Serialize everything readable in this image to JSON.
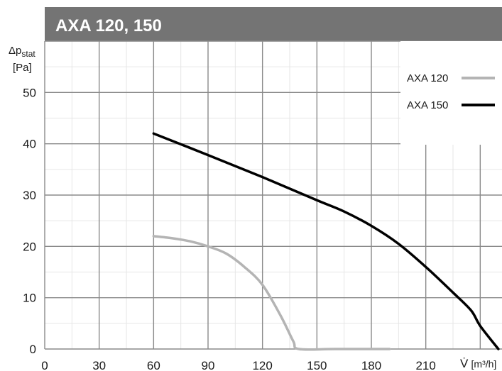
{
  "chart_data": {
    "type": "line",
    "title": "AXA 120, 150",
    "ylabel": "Δp",
    "ylabel_sub": "stat",
    "ylabel_unit": "[Pa]",
    "xlabel": "V̇",
    "xlabel_unit": "[m³/h]",
    "xlim": [
      0,
      252
    ],
    "ylim": [
      0,
      60
    ],
    "x_ticks": [
      0,
      30,
      60,
      90,
      120,
      150,
      180,
      210
    ],
    "y_ticks": [
      0,
      10,
      20,
      30,
      40,
      50
    ],
    "grid": true,
    "legend_position": "top-right",
    "series": [
      {
        "name": "AXA 120",
        "color": "#b4b4b4",
        "x": [
          60,
          70,
          80,
          90,
          100,
          110,
          120,
          130,
          137,
          140,
          160,
          190
        ],
        "y": [
          22,
          21.6,
          21,
          20,
          18.6,
          16,
          12.5,
          6.5,
          1.5,
          0,
          0,
          0
        ]
      },
      {
        "name": "AXA 150",
        "color": "#000000",
        "x": [
          60,
          90,
          120,
          150,
          165,
          180,
          195,
          210,
          225,
          235,
          240,
          250
        ],
        "y": [
          42,
          37.8,
          33.5,
          29,
          26.8,
          24,
          20.5,
          16,
          11,
          7.5,
          4.5,
          0
        ]
      }
    ]
  }
}
